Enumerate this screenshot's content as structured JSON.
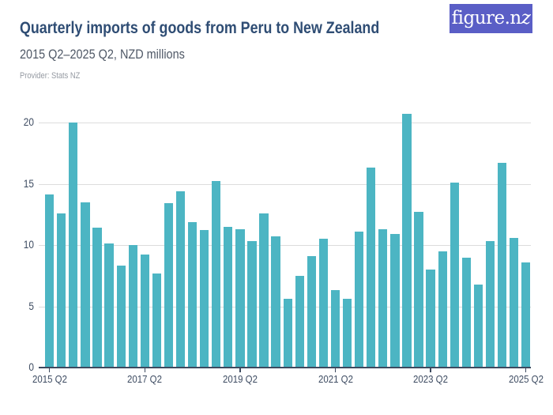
{
  "header": {
    "title": "Quarterly imports of goods from Peru to New Zealand",
    "subtitle": "2015 Q2–2025 Q2, NZD millions",
    "provider": "Provider: Stats NZ",
    "logo_text_main": "figure.n",
    "logo_text_z": "z"
  },
  "colors": {
    "bar": "#4cb5c3",
    "title": "#2f4d74",
    "subtitle": "#4f5866",
    "provider": "#959aa2",
    "axis_text": "#3e4c62",
    "gridline": "#dcdcdc",
    "axis_line": "#3d4a5f",
    "logo_bg": "#5a5ec6",
    "logo_text": "#ffffff",
    "page_bg": "#ffffff"
  },
  "chart_data": {
    "type": "bar",
    "title": "Quarterly imports of goods from Peru to New Zealand",
    "subtitle": "2015 Q2–2025 Q2, NZD millions",
    "unit": "NZD millions",
    "categories": [
      "2015 Q2",
      "2015 Q3",
      "2015 Q4",
      "2016 Q1",
      "2016 Q2",
      "2016 Q3",
      "2016 Q4",
      "2017 Q1",
      "2017 Q2",
      "2017 Q3",
      "2017 Q4",
      "2018 Q1",
      "2018 Q2",
      "2018 Q3",
      "2018 Q4",
      "2019 Q1",
      "2019 Q2",
      "2019 Q3",
      "2019 Q4",
      "2020 Q1",
      "2020 Q2",
      "2020 Q3",
      "2020 Q4",
      "2021 Q1",
      "2021 Q2",
      "2021 Q3",
      "2021 Q4",
      "2022 Q1",
      "2022 Q2",
      "2022 Q3",
      "2022 Q4",
      "2023 Q1",
      "2023 Q2",
      "2023 Q3",
      "2023 Q4",
      "2024 Q1",
      "2024 Q2",
      "2024 Q3",
      "2024 Q4",
      "2025 Q1",
      "2025 Q2"
    ],
    "values": [
      14.1,
      12.6,
      20.0,
      13.5,
      11.4,
      10.1,
      8.3,
      10.0,
      9.2,
      7.7,
      13.4,
      14.4,
      11.9,
      11.2,
      15.2,
      11.5,
      11.3,
      10.3,
      12.6,
      10.7,
      5.6,
      7.5,
      9.1,
      10.5,
      6.3,
      5.6,
      11.1,
      16.3,
      11.3,
      10.9,
      20.7,
      12.7,
      8.0,
      9.5,
      15.1,
      9.0,
      6.8,
      10.3,
      16.7,
      10.6,
      8.6
    ],
    "ylim": [
      0,
      20
    ],
    "y_ticks": [
      0,
      5,
      10,
      15,
      20
    ],
    "x_tick_labels": [
      "2015 Q2",
      "2017 Q2",
      "2019 Q2",
      "2021 Q2",
      "2023 Q2",
      "2025 Q2"
    ],
    "x_tick_indices": [
      0,
      8,
      16,
      24,
      32,
      40
    ],
    "grid": "horizontal",
    "legend": "none",
    "bar_color": "#4cb5c3"
  }
}
